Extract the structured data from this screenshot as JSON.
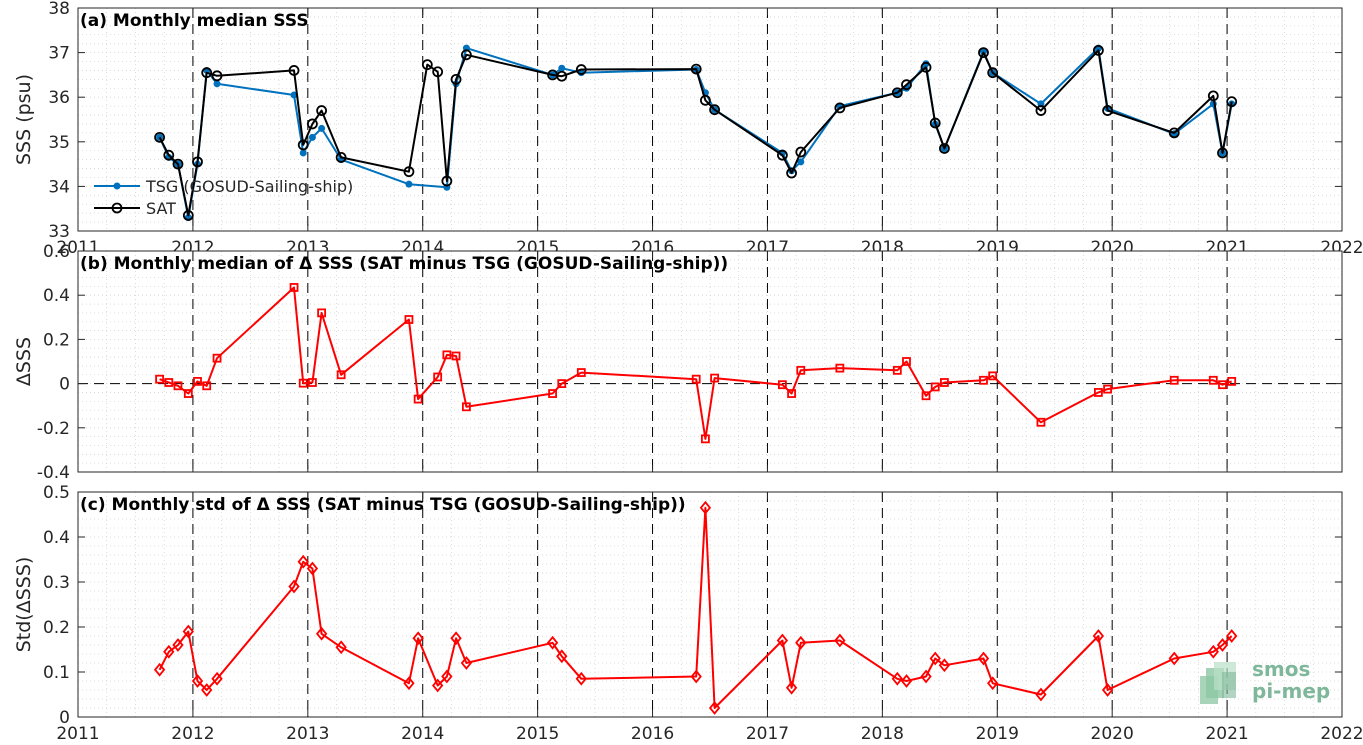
{
  "logo": {
    "line1": "smos",
    "line2": "pi-mep"
  },
  "chart_data": [
    {
      "type": "line",
      "title": "(a) Monthly median SSS",
      "xlabel": "",
      "ylabel": "SSS (psu)",
      "xlim": [
        2011,
        2022
      ],
      "ylim": [
        33,
        38
      ],
      "xticks": [
        "2011",
        "2012",
        "2013",
        "2014",
        "2015",
        "2016",
        "2017",
        "2018",
        "2019",
        "2020",
        "2021",
        "2022"
      ],
      "yticks": [
        "33",
        "34",
        "35",
        "36",
        "37",
        "38"
      ],
      "grid": "minor-dotted",
      "legend_position": "bottom-left",
      "series": [
        {
          "name": "TSG (GOSUD-Sailing-ship)",
          "color": "#0072bd",
          "marker": "dot",
          "x": [
            2011.71,
            2011.79,
            2011.87,
            2011.96,
            2012.04,
            2012.12,
            2012.21,
            2012.88,
            2012.96,
            2013.04,
            2013.12,
            2013.29,
            2013.88,
            2014.21,
            2014.29,
            2014.38,
            2015.13,
            2015.21,
            2015.38,
            2016.38,
            2016.46,
            2016.54,
            2017.13,
            2017.21,
            2017.29,
            2017.63,
            2018.13,
            2018.21,
            2018.38,
            2018.46,
            2018.54,
            2018.88,
            2018.96,
            2019.38,
            2019.88,
            2019.96,
            2020.54,
            2020.88,
            2020.96,
            2021.04
          ],
          "y": [
            35.1,
            34.65,
            34.5,
            33.3,
            34.5,
            36.6,
            36.3,
            36.05,
            34.75,
            35.1,
            35.3,
            34.6,
            34.05,
            33.98,
            36.3,
            37.1,
            36.5,
            36.65,
            36.55,
            36.62,
            36.1,
            35.72,
            34.75,
            34.35,
            34.55,
            35.8,
            36.1,
            36.2,
            36.75,
            35.4,
            34.85,
            37.02,
            36.55,
            35.85,
            37.1,
            35.75,
            35.18,
            35.85,
            34.75,
            35.85
          ]
        },
        {
          "name": "SAT",
          "color": "#000000",
          "marker": "circle",
          "x": [
            2011.71,
            2011.79,
            2011.87,
            2011.96,
            2012.04,
            2012.12,
            2012.21,
            2012.88,
            2012.96,
            2013.04,
            2013.12,
            2013.29,
            2013.88,
            2014.04,
            2014.13,
            2014.21,
            2014.29,
            2014.38,
            2015.13,
            2015.21,
            2015.38,
            2016.38,
            2016.46,
            2016.54,
            2017.13,
            2017.21,
            2017.29,
            2017.63,
            2018.13,
            2018.21,
            2018.38,
            2018.46,
            2018.54,
            2018.88,
            2018.96,
            2019.38,
            2019.88,
            2019.96,
            2020.54,
            2020.88,
            2020.96,
            2021.04
          ],
          "y": [
            35.1,
            34.7,
            34.5,
            33.35,
            34.55,
            36.55,
            36.48,
            36.6,
            34.93,
            35.4,
            35.7,
            34.65,
            34.33,
            36.73,
            36.57,
            34.12,
            36.4,
            36.95,
            36.5,
            36.47,
            36.62,
            36.63,
            35.93,
            35.72,
            34.7,
            34.3,
            34.77,
            35.76,
            36.1,
            36.28,
            36.67,
            35.42,
            34.85,
            37.0,
            36.55,
            35.7,
            37.05,
            35.7,
            35.2,
            36.03,
            34.75,
            35.9
          ]
        }
      ]
    },
    {
      "type": "line",
      "title": "(b) Monthly median of Δ SSS (SAT minus TSG (GOSUD-Sailing-ship))",
      "xlabel": "",
      "ylabel": "ΔSSS",
      "xlim": [
        2011,
        2022
      ],
      "ylim": [
        -0.4,
        0.6
      ],
      "xticks": [],
      "yticks": [
        "-0.4",
        "-0.2",
        "0",
        "0.2",
        "0.4",
        "0.6"
      ],
      "zero_line": "dashed",
      "grid": "minor-dotted",
      "series": [
        {
          "color": "#ff0000",
          "marker": "square",
          "x": [
            2011.71,
            2011.79,
            2011.87,
            2011.96,
            2012.04,
            2012.12,
            2012.21,
            2012.88,
            2012.96,
            2013.04,
            2013.12,
            2013.29,
            2013.88,
            2013.96,
            2014.13,
            2014.21,
            2014.29,
            2014.38,
            2015.13,
            2015.21,
            2015.38,
            2016.38,
            2016.46,
            2016.54,
            2017.13,
            2017.21,
            2017.29,
            2017.63,
            2018.13,
            2018.21,
            2018.38,
            2018.46,
            2018.54,
            2018.88,
            2018.96,
            2019.38,
            2019.88,
            2019.96,
            2020.54,
            2020.88,
            2020.96,
            2021.04
          ],
          "y": [
            0.02,
            0.005,
            -0.01,
            -0.045,
            0.01,
            -0.01,
            0.115,
            0.435,
            0.002,
            0.005,
            0.32,
            0.04,
            0.29,
            -0.07,
            0.03,
            0.13,
            0.125,
            -0.105,
            -0.045,
            0.0,
            0.05,
            0.02,
            -0.25,
            0.025,
            -0.005,
            -0.045,
            0.06,
            0.07,
            0.06,
            0.1,
            -0.055,
            -0.015,
            0.005,
            0.015,
            0.035,
            -0.175,
            -0.04,
            -0.025,
            0.015,
            0.015,
            -0.005,
            0.01
          ]
        }
      ]
    },
    {
      "type": "line",
      "title": "(c) Monthly std of Δ SSS (SAT minus TSG (GOSUD-Sailing-ship))",
      "xlabel": "",
      "ylabel": "Std(ΔSSS)",
      "xlim": [
        2011,
        2022
      ],
      "ylim": [
        0,
        0.5
      ],
      "xticks": [
        "2011",
        "2012",
        "2013",
        "2014",
        "2015",
        "2016",
        "2017",
        "2018",
        "2019",
        "2020",
        "2021",
        "2022"
      ],
      "yticks": [
        "0",
        "0.1",
        "0.2",
        "0.3",
        "0.4",
        "0.5"
      ],
      "grid": "minor-dotted",
      "series": [
        {
          "color": "#ff0000",
          "marker": "diamond",
          "x": [
            2011.71,
            2011.79,
            2011.87,
            2011.96,
            2012.04,
            2012.12,
            2012.21,
            2012.88,
            2012.96,
            2013.04,
            2013.12,
            2013.29,
            2013.88,
            2013.96,
            2014.13,
            2014.21,
            2014.29,
            2014.38,
            2015.13,
            2015.21,
            2015.38,
            2016.38,
            2016.46,
            2016.54,
            2017.13,
            2017.21,
            2017.29,
            2017.63,
            2018.13,
            2018.21,
            2018.38,
            2018.46,
            2018.54,
            2018.88,
            2018.96,
            2019.38,
            2019.88,
            2019.96,
            2020.54,
            2020.88,
            2020.96,
            2021.04
          ],
          "y": [
            0.105,
            0.145,
            0.16,
            0.19,
            0.08,
            0.06,
            0.085,
            0.29,
            0.345,
            0.33,
            0.185,
            0.155,
            0.075,
            0.175,
            0.07,
            0.09,
            0.175,
            0.12,
            0.165,
            0.135,
            0.085,
            0.09,
            0.465,
            0.02,
            0.17,
            0.065,
            0.165,
            0.17,
            0.085,
            0.08,
            0.09,
            0.13,
            0.115,
            0.13,
            0.075,
            0.05,
            0.18,
            0.06,
            0.13,
            0.145,
            0.16,
            0.18
          ]
        }
      ]
    }
  ]
}
